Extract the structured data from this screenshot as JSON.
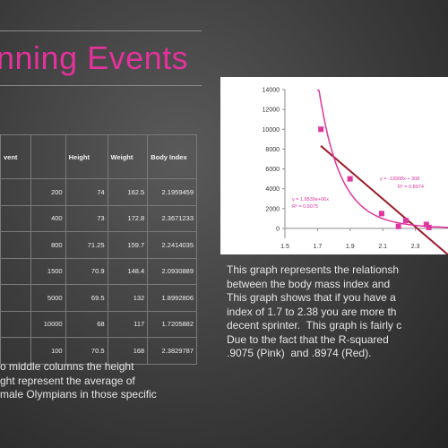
{
  "slide": {
    "title": "nning Events",
    "table": {
      "headers": [
        "vent",
        "Height",
        "Weight",
        "Body Index"
      ],
      "rows": [
        [
          "200",
          "74",
          "162.5",
          "2.1959459"
        ],
        [
          "400",
          "73",
          "172.8",
          "2.3671233"
        ],
        [
          "800",
          "71.25",
          "159.7",
          "2.2414035"
        ],
        [
          "1500",
          "70.9",
          "148.4",
          "2.0930889"
        ],
        [
          "5000",
          "69.5",
          "132",
          "1.8992806"
        ],
        [
          "10000",
          "68",
          "117",
          "1.7205882"
        ],
        [
          "100",
          "70.5",
          "168",
          "2.3829787"
        ]
      ]
    },
    "left_caption": [
      "o middle columns the height",
      "ght represent the average of",
      "male Olympians in those specific"
    ],
    "right_caption": [
      "This graph represents the relationsh",
      "between the body mass index and",
      "This graph shows that if you have a",
      "index of 1.7 to 2.38 you are more th",
      "decent sprinter.  This graph is fairly c",
      "Due to the fact that the R-squared",
      ".9075 (Pink)  and .8974 (Red)."
    ]
  },
  "chart_data": {
    "type": "scatter",
    "xlim": [
      1.5,
      2.5
    ],
    "ylim": [
      -1000,
      14000
    ],
    "xticks": [
      "1.5",
      "1.7",
      "1.9",
      "2.1",
      "2.3"
    ],
    "yticks": [
      "0",
      "2000",
      "4000",
      "6000",
      "8000",
      "10000",
      "12000",
      "14000"
    ],
    "grid": false,
    "points": [
      {
        "x": 1.7205882,
        "y": 10000
      },
      {
        "x": 1.8992806,
        "y": 5000
      },
      {
        "x": 2.0930889,
        "y": 1500
      },
      {
        "x": 2.1959459,
        "y": 200
      },
      {
        "x": 2.2414035,
        "y": 800
      },
      {
        "x": 2.3671233,
        "y": 400
      },
      {
        "x": 2.3829787,
        "y": 100
      }
    ],
    "trendlines": [
      {
        "kind": "power",
        "color": "#e0359c",
        "label_lines": [
          "y = 1.8539e+06x",
          "R² = 0.9075"
        ]
      },
      {
        "kind": "linear",
        "color": "#9c1a2a",
        "label_lines": [
          "y = -13908x + 308",
          "R² = 0.8974"
        ]
      }
    ],
    "colors": {
      "points": "#e0359c",
      "power": "#e0359c",
      "linear": "#9c1a2a",
      "axis": "#8c8c8c"
    }
  }
}
